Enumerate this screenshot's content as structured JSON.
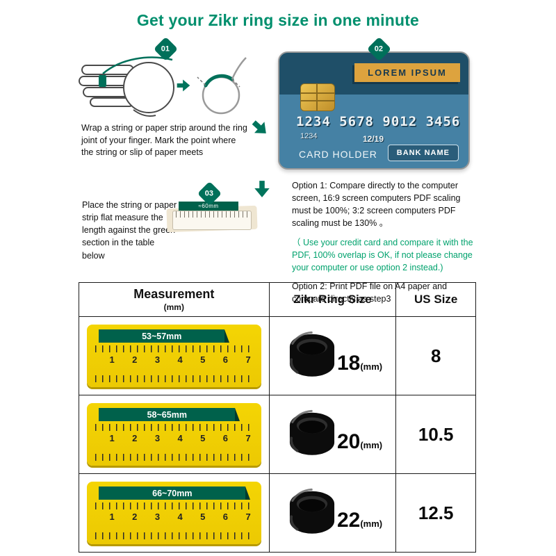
{
  "title": "Get your Zikr ring size in one minute",
  "colors": {
    "title_green": "#008f6d",
    "accent": "#00705a",
    "accent_dark": "#00614b",
    "note_green": "#00a26d",
    "ruler_yellow": "#f4d504",
    "card_blue": "#4581a4",
    "card_dark": "#1f4f68",
    "banner_orange": "#dda33e"
  },
  "icons": {
    "flow_arrow": "arrow-icon",
    "hand": "hand-with-string-icon",
    "loop": "string-loop-icon",
    "ring": "black-ring-image"
  },
  "steps": {
    "step1": {
      "badge": "01",
      "text": "Wrap a string or paper strip around the ring joint of your finger. Mark the point where the string or slip of paper meets"
    },
    "step2": {
      "badge": "02",
      "card": {
        "banner": "LOREM IPSUM",
        "number": "1234 5678 9012 3456",
        "small_number": "1234",
        "expiry": "12/19",
        "holder": "CARD HOLDER",
        "bank": "BANK NAME"
      }
    },
    "step3": {
      "badge": "03",
      "ruler_label": "≈60mm",
      "text": "Place the string or paper strip flat measure the length against the green section in the table below"
    }
  },
  "options": {
    "option1": "Option 1: Compare directly to the computer screen, 16:9 screen computers PDF scaling must be 100%; 3:2 screen computers PDF scaling must be 130% 。",
    "note": "（ Use your credit card and compare it with the PDF, 100% overlap is OK, if not please change your computer or use option 2 instead.)",
    "option2": "Option 2: Print PDF file on A4 paper and compare directly as step3"
  },
  "table": {
    "header1_title": "Measurement",
    "header1_sub": "(mm)",
    "header2": "Zikr Ring Size",
    "header3": "US Size",
    "ruler_numbers": [
      "1",
      "2",
      "3",
      "4",
      "5",
      "6",
      "7"
    ],
    "rows": [
      {
        "range": "53~57mm",
        "ring_size": "18",
        "ring_unit": "(mm)",
        "us_size": "8"
      },
      {
        "range": "58~65mm",
        "ring_size": "20",
        "ring_unit": "(mm)",
        "us_size": "10.5"
      },
      {
        "range": "66~70mm",
        "ring_size": "22",
        "ring_unit": "(mm)",
        "us_size": "12.5"
      }
    ]
  }
}
